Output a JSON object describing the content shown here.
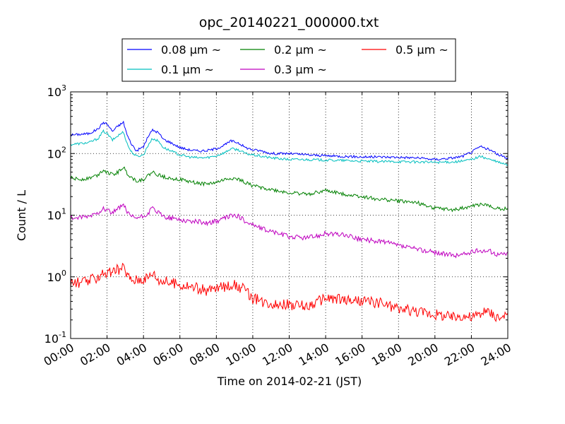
{
  "chart_data": {
    "type": "line",
    "title": "opc_20140221_000000.txt",
    "xlabel": "Time on 2014-02-21 (JST)",
    "ylabel": "Count / L",
    "x_range_hours": [
      0,
      24
    ],
    "x_ticks": [
      {
        "hour": 0,
        "label": "00:00"
      },
      {
        "hour": 2,
        "label": "02:00"
      },
      {
        "hour": 4,
        "label": "04:00"
      },
      {
        "hour": 6,
        "label": "06:00"
      },
      {
        "hour": 8,
        "label": "08:00"
      },
      {
        "hour": 10,
        "label": "10:00"
      },
      {
        "hour": 12,
        "label": "12:00"
      },
      {
        "hour": 14,
        "label": "14:00"
      },
      {
        "hour": 16,
        "label": "16:00"
      },
      {
        "hour": 18,
        "label": "18:00"
      },
      {
        "hour": 20,
        "label": "20:00"
      },
      {
        "hour": 22,
        "label": "22:00"
      },
      {
        "hour": 24,
        "label": "24:00"
      }
    ],
    "y_scale": "log",
    "ylim": [
      0.1,
      1000
    ],
    "y_ticks": [
      {
        "value": 0.1,
        "base": "10",
        "exp": "-1"
      },
      {
        "value": 1,
        "base": "10",
        "exp": "0"
      },
      {
        "value": 10,
        "base": "10",
        "exp": "1"
      },
      {
        "value": 100,
        "base": "10",
        "exp": "2"
      },
      {
        "value": 1000,
        "base": "10",
        "exp": "3"
      }
    ],
    "grid": true,
    "legend_position": "top-center, above plot",
    "series": [
      {
        "name": "0.08 μm ~",
        "color": "#0000ff",
        "x": [
          0,
          0.5,
          1,
          1.5,
          1.8,
          2,
          2.3,
          2.6,
          2.9,
          3.1,
          3.3,
          3.6,
          4,
          4.3,
          4.5,
          4.8,
          5.1,
          5.5,
          6,
          6.5,
          7,
          7.5,
          8,
          8.5,
          8.8,
          9.2,
          9.6,
          10,
          10.5,
          11,
          12,
          13,
          14,
          15,
          16,
          17,
          18,
          19,
          20,
          21,
          21.5,
          22,
          22.5,
          23,
          23.5,
          24
        ],
        "y": [
          200,
          205,
          210,
          250,
          320,
          300,
          230,
          280,
          320,
          200,
          150,
          110,
          130,
          200,
          240,
          220,
          170,
          150,
          125,
          115,
          110,
          112,
          120,
          140,
          160,
          150,
          125,
          115,
          110,
          100,
          100,
          95,
          92,
          90,
          88,
          88,
          87,
          85,
          80,
          85,
          90,
          105,
          130,
          115,
          95,
          85
        ]
      },
      {
        "name": "0.1 μm ~",
        "color": "#00bfbf",
        "x": [
          0,
          0.5,
          1,
          1.5,
          1.8,
          2,
          2.3,
          2.6,
          2.9,
          3.1,
          3.3,
          3.6,
          4,
          4.3,
          4.5,
          4.8,
          5.1,
          5.5,
          6,
          6.5,
          7,
          7.5,
          8,
          8.5,
          8.8,
          9.2,
          9.6,
          10,
          10.5,
          11,
          12,
          13,
          14,
          15,
          16,
          17,
          18,
          19,
          20,
          21,
          21.5,
          22,
          22.5,
          23,
          23.5,
          24
        ],
        "y": [
          140,
          145,
          150,
          175,
          230,
          210,
          165,
          195,
          225,
          145,
          110,
          90,
          95,
          145,
          175,
          160,
          125,
          110,
          95,
          88,
          85,
          86,
          92,
          105,
          120,
          115,
          100,
          95,
          90,
          85,
          80,
          80,
          78,
          77,
          75,
          74,
          74,
          73,
          72,
          73,
          75,
          80,
          90,
          80,
          72,
          65
        ]
      },
      {
        "name": "0.2 μm ~",
        "color": "#008000",
        "x": [
          0,
          0.5,
          1,
          1.5,
          1.8,
          2,
          2.3,
          2.6,
          2.9,
          3.1,
          3.3,
          3.6,
          4,
          4.3,
          4.5,
          4.8,
          5.1,
          5.5,
          6,
          6.5,
          7,
          7.5,
          8,
          8.5,
          8.8,
          9.2,
          9.6,
          10,
          10.5,
          11,
          12,
          13,
          14,
          15,
          16,
          17,
          18,
          19,
          20,
          21,
          21.5,
          22,
          22.5,
          23,
          23.5,
          24
        ],
        "y": [
          40,
          38,
          40,
          45,
          55,
          50,
          45,
          50,
          60,
          48,
          42,
          36,
          38,
          45,
          50,
          45,
          42,
          40,
          38,
          35,
          33,
          32,
          34,
          38,
          40,
          38,
          34,
          30,
          28,
          26,
          23,
          22,
          25,
          22,
          20,
          18,
          17,
          16,
          13,
          12,
          13,
          14,
          15,
          14,
          13,
          12.5
        ]
      },
      {
        "name": "0.3 μm ~",
        "color": "#bf00bf",
        "x": [
          0,
          0.5,
          1,
          1.5,
          1.8,
          2,
          2.3,
          2.6,
          2.9,
          3.1,
          3.3,
          3.6,
          4,
          4.3,
          4.5,
          4.8,
          5.1,
          5.5,
          6,
          6.5,
          7,
          7.5,
          8,
          8.5,
          8.8,
          9.2,
          9.6,
          10,
          10.5,
          11,
          12,
          13,
          14,
          15,
          16,
          17,
          18,
          19,
          20,
          21,
          21.5,
          22,
          22.5,
          23,
          23.5,
          24
        ],
        "y": [
          9,
          9,
          9.5,
          11,
          13,
          12,
          11,
          12.5,
          15,
          11,
          9.5,
          9,
          9.5,
          11,
          13,
          11,
          9.5,
          9,
          8.5,
          8,
          7.8,
          7.5,
          8,
          9,
          10,
          9.5,
          8,
          7,
          6,
          5.5,
          4.5,
          4.3,
          5,
          4.8,
          4,
          3.8,
          3.2,
          2.8,
          2.5,
          2.2,
          2.3,
          2.5,
          2.7,
          2.6,
          2.3,
          2.4
        ]
      },
      {
        "name": "0.5 μm ~",
        "color": "#ff0000",
        "x": [
          0,
          0.5,
          1,
          1.5,
          1.8,
          2,
          2.3,
          2.6,
          2.9,
          3.1,
          3.3,
          3.6,
          4,
          4.3,
          4.5,
          4.8,
          5.1,
          5.5,
          6,
          6.5,
          7,
          7.5,
          8,
          8.5,
          8.8,
          9.2,
          9.6,
          10,
          10.5,
          11,
          12,
          13,
          14,
          15,
          16,
          17,
          18,
          19,
          20,
          21,
          21.5,
          22,
          22.5,
          23,
          23.5,
          24
        ],
        "y": [
          0.8,
          0.8,
          0.85,
          1.0,
          1.2,
          1.1,
          1.2,
          1.3,
          1.4,
          1.1,
          0.9,
          0.9,
          0.95,
          1.0,
          1.2,
          0.9,
          0.85,
          0.8,
          0.75,
          0.7,
          0.65,
          0.6,
          0.65,
          0.7,
          0.75,
          0.7,
          0.6,
          0.45,
          0.4,
          0.38,
          0.35,
          0.33,
          0.45,
          0.42,
          0.4,
          0.38,
          0.3,
          0.28,
          0.25,
          0.22,
          0.24,
          0.22,
          0.25,
          0.27,
          0.22,
          0.22
        ]
      }
    ]
  }
}
